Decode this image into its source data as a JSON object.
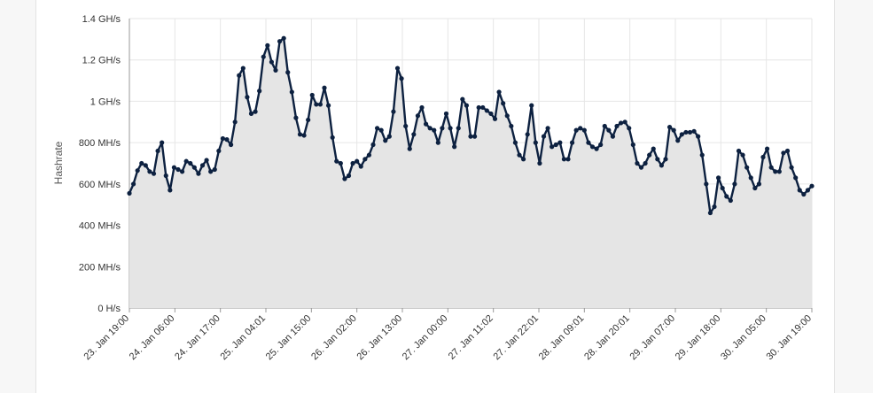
{
  "chart_data": {
    "type": "area",
    "title": "",
    "ylabel": "Hashrate",
    "xlabel": "",
    "ylim": [
      0,
      1400
    ],
    "yunit": "MH/s",
    "y_ticks": [
      {
        "value": 0,
        "label": "0 H/s"
      },
      {
        "value": 200,
        "label": "200 MH/s"
      },
      {
        "value": 400,
        "label": "400 MH/s"
      },
      {
        "value": 600,
        "label": "600 MH/s"
      },
      {
        "value": 800,
        "label": "800 MH/s"
      },
      {
        "value": 1000,
        "label": "1 GH/s"
      },
      {
        "value": 1200,
        "label": "1.2 GH/s"
      },
      {
        "value": 1400,
        "label": "1.4 GH/s"
      }
    ],
    "x_ticks": [
      "23. Jan 19:00",
      "24. Jan 06:00",
      "24. Jan 17:00",
      "25. Jan 04:01",
      "25. Jan 15:00",
      "26. Jan 02:00",
      "26. Jan 13:00",
      "27. Jan 00:00",
      "27. Jan 11:02",
      "27. Jan 22:01",
      "28. Jan 09:01",
      "28. Jan 20:01",
      "29. Jan 07:00",
      "29. Jan 18:00",
      "30. Jan 05:00",
      "30. Jan 19:00"
    ],
    "grid": true,
    "legend": "none",
    "colors": {
      "line": "#0d2140",
      "fill": "#e5e5e5",
      "grid": "#e6e6e6",
      "axis": "#999999"
    },
    "series": [
      {
        "values": [
          555,
          600,
          665,
          700,
          690,
          660,
          650,
          760,
          800,
          640,
          570,
          680,
          670,
          660,
          710,
          700,
          680,
          650,
          690,
          715,
          660,
          670,
          760,
          820,
          815,
          790,
          900,
          1125,
          1160,
          1020,
          940,
          950,
          1050,
          1215,
          1270,
          1190,
          1150,
          1290,
          1305,
          1140,
          1045,
          920,
          840,
          835,
          910,
          1030,
          985,
          985,
          1065,
          980,
          825,
          710,
          700,
          625,
          640,
          700,
          710,
          685,
          720,
          740,
          790,
          870,
          860,
          810,
          830,
          950,
          1160,
          1110,
          880,
          770,
          840,
          930,
          970,
          890,
          870,
          860,
          800,
          870,
          940,
          870,
          780,
          870,
          1010,
          980,
          830,
          830,
          970,
          970,
          955,
          940,
          915,
          1045,
          990,
          930,
          880,
          800,
          740,
          720,
          840,
          980,
          800,
          700,
          830,
          870,
          780,
          790,
          800,
          720,
          720,
          800,
          860,
          870,
          860,
          800,
          780,
          770,
          790,
          880,
          860,
          830,
          880,
          895,
          900,
          870,
          790,
          700,
          680,
          700,
          740,
          770,
          720,
          690,
          720,
          875,
          860,
          810,
          840,
          850,
          850,
          855,
          830,
          740,
          600,
          460,
          490,
          630,
          580,
          540,
          520,
          600,
          760,
          740,
          680,
          630,
          580,
          600,
          730,
          770,
          680,
          660,
          660,
          750,
          760,
          680,
          630,
          570,
          550,
          570,
          590
        ]
      }
    ]
  }
}
